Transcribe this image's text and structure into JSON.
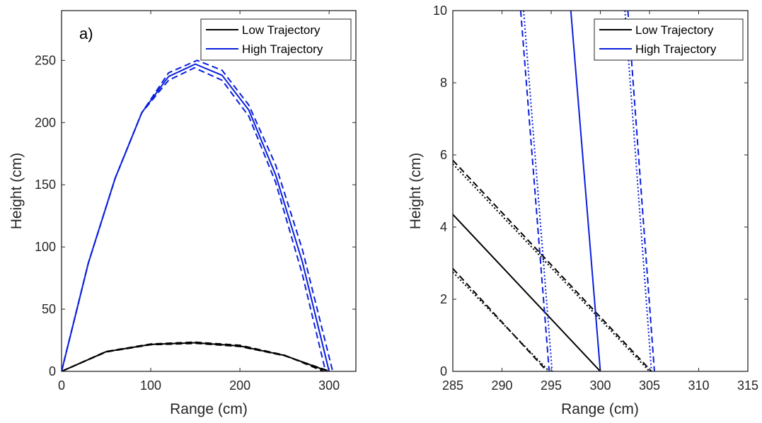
{
  "chart_data": [
    {
      "type": "line",
      "panel_label": "a)",
      "xlabel": "Range (cm)",
      "ylabel": "Height (cm)",
      "xlim": [
        0,
        330
      ],
      "ylim": [
        0,
        290
      ],
      "xticks": [
        "0",
        "100",
        "200",
        "300"
      ],
      "yticks": [
        "0",
        "50",
        "100",
        "150",
        "200",
        "250"
      ],
      "xtick_values": [
        0,
        100,
        200,
        300
      ],
      "ytick_values": [
        0,
        50,
        100,
        150,
        200,
        250
      ],
      "legend": {
        "position": "top-right",
        "entries": [
          "Low Trajectory",
          "High Trajectory"
        ]
      },
      "series": [
        {
          "name": "Low Trajectory",
          "color": "#000000",
          "style": "solid",
          "x": [
            0,
            50,
            100,
            149.5,
            200,
            250,
            299
          ],
          "y": [
            0,
            15.8,
            21.7,
            23,
            20.4,
            12.8,
            0
          ]
        },
        {
          "color": "#000000",
          "style": "dashed",
          "x": [
            0,
            50,
            100,
            148.5,
            200,
            250,
            294
          ],
          "y": [
            0,
            16,
            22,
            23.5,
            21,
            13,
            0
          ]
        },
        {
          "color": "#000000",
          "style": "dashed",
          "x": [
            0,
            50,
            100,
            150.5,
            200,
            250,
            301
          ],
          "y": [
            0,
            15.6,
            21.4,
            22.5,
            20,
            12.6,
            0
          ]
        },
        {
          "name": "High Trajectory",
          "color": "#0a1fdc",
          "style": "solid",
          "x": [
            0,
            30,
            60,
            90,
            120,
            150,
            180,
            210,
            240,
            270,
            300
          ],
          "y": [
            0,
            87,
            155,
            208,
            237,
            247,
            238,
            210,
            158,
            88,
            0
          ]
        },
        {
          "color": "#0a1fdc",
          "style": "dashed",
          "x": [
            0,
            30,
            60,
            90,
            120,
            152,
            180,
            210,
            240,
            270,
            304
          ],
          "y": [
            0,
            87,
            155,
            208,
            240,
            250,
            242,
            214,
            166,
            98,
            0
          ]
        },
        {
          "color": "#0a1fdc",
          "style": "dashed",
          "x": [
            0,
            30,
            60,
            90,
            120,
            149,
            180,
            210,
            240,
            270,
            296
          ],
          "y": [
            0,
            87,
            155,
            208,
            234,
            244,
            234,
            205,
            152,
            78,
            0
          ]
        }
      ]
    },
    {
      "type": "line",
      "xlabel": "Range (cm)",
      "ylabel": "Height (cm)",
      "xlim": [
        285,
        315
      ],
      "ylim": [
        0,
        10
      ],
      "xticks": [
        "285",
        "290",
        "295",
        "300",
        "305",
        "310",
        "315"
      ],
      "yticks": [
        "0",
        "2",
        "4",
        "6",
        "8",
        "10"
      ],
      "xtick_values": [
        285,
        290,
        295,
        300,
        305,
        310,
        315
      ],
      "ytick_values": [
        0,
        2,
        4,
        6,
        8,
        10
      ],
      "legend": {
        "position": "top-right",
        "entries": [
          "Low Trajectory",
          "High Trajectory"
        ]
      },
      "series": [
        {
          "name": "Low Trajectory",
          "color": "#000000",
          "style": "solid",
          "x": [
            285,
            300
          ],
          "y": [
            4.35,
            0
          ]
        },
        {
          "color": "#000000",
          "style": "dashed",
          "x": [
            285,
            305.2
          ],
          "y": [
            5.85,
            0
          ]
        },
        {
          "color": "#000000",
          "style": "dotted",
          "x": [
            285,
            305
          ],
          "y": [
            5.75,
            0
          ]
        },
        {
          "color": "#000000",
          "style": "dashed",
          "x": [
            285,
            294.6
          ],
          "y": [
            2.85,
            0
          ]
        },
        {
          "color": "#000000",
          "style": "dotted",
          "x": [
            285,
            294.8
          ],
          "y": [
            2.75,
            0
          ]
        },
        {
          "name": "High Trajectory",
          "color": "#0a1fdc",
          "style": "solid",
          "x": [
            297,
            300
          ],
          "y": [
            10,
            0
          ]
        },
        {
          "color": "#0a1fdc",
          "style": "dashed",
          "x": [
            291.9,
            294.8
          ],
          "y": [
            10,
            0
          ]
        },
        {
          "color": "#0a1fdc",
          "style": "dotted",
          "x": [
            292.2,
            295.1
          ],
          "y": [
            10,
            0
          ]
        },
        {
          "color": "#0a1fdc",
          "style": "dashed",
          "x": [
            302.8,
            305.5
          ],
          "y": [
            10,
            0
          ]
        },
        {
          "color": "#0a1fdc",
          "style": "dotted",
          "x": [
            302.5,
            305.2
          ],
          "y": [
            10,
            0
          ]
        }
      ]
    }
  ]
}
